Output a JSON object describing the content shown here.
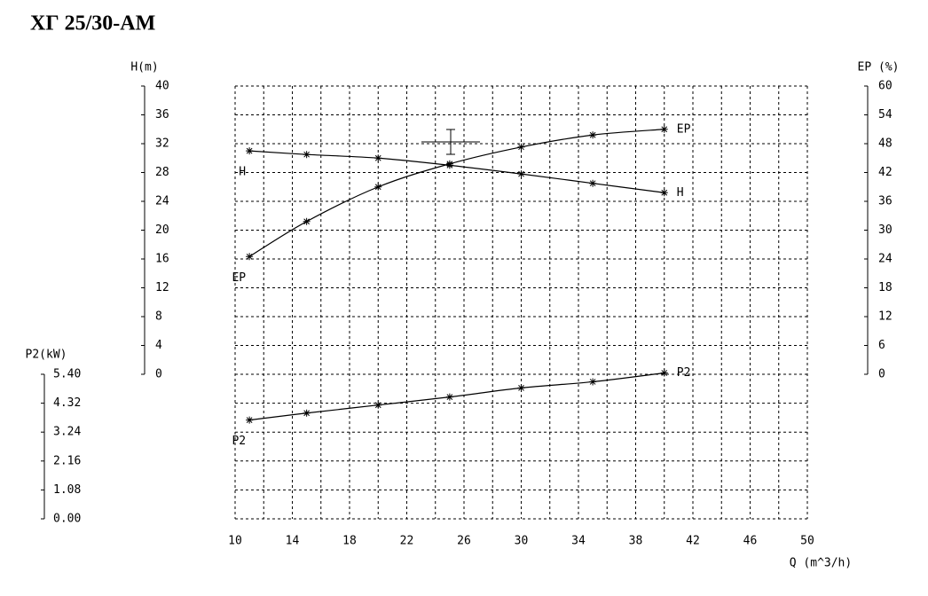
{
  "chart_data": {
    "type": "line",
    "title": "ХГ 25/30-АМ",
    "x_label": "Q (m^3/h)",
    "y_label": "H(m)",
    "y2_label": "EP (%)",
    "y3_label": "P2(kW)",
    "xlim": [
      10,
      50
    ],
    "xticks": [
      10,
      14,
      18,
      22,
      26,
      30,
      34,
      38,
      42,
      46,
      50
    ],
    "ylim": [
      0,
      40
    ],
    "yticks": [
      0,
      4,
      8,
      12,
      16,
      20,
      24,
      28,
      32,
      36,
      40
    ],
    "y2lim": [
      0,
      60
    ],
    "y2ticks": [
      0,
      6,
      12,
      18,
      24,
      30,
      36,
      42,
      48,
      54,
      60
    ],
    "y3lim": [
      0,
      5.4
    ],
    "y3ticks": [
      {
        "value": 0,
        "label": "0.00"
      },
      {
        "value": 1.08,
        "label": "1.08"
      },
      {
        "value": 2.16,
        "label": "2.16"
      },
      {
        "value": 3.24,
        "label": "3.24"
      },
      {
        "value": 4.32,
        "label": "4.32"
      },
      {
        "value": 5.4,
        "label": "5.40"
      }
    ],
    "grid": true,
    "x": [
      11,
      15,
      20,
      25,
      30,
      35,
      40
    ],
    "series": [
      {
        "name": "H",
        "color": "#000000",
        "axis": "y",
        "values": [
          31,
          30.5,
          30,
          29,
          27.8,
          26.5,
          25.2
        ]
      },
      {
        "name": "EP",
        "color": "#000000",
        "axis": "y2",
        "values": [
          24.5,
          31.8,
          39,
          43.8,
          47.3,
          49.8,
          51
        ]
      },
      {
        "name": "P2",
        "color": "#000000",
        "axis": "y3",
        "values": [
          3.69,
          3.95,
          4.25,
          4.55,
          4.89,
          5.12,
          5.45
        ]
      }
    ]
  }
}
